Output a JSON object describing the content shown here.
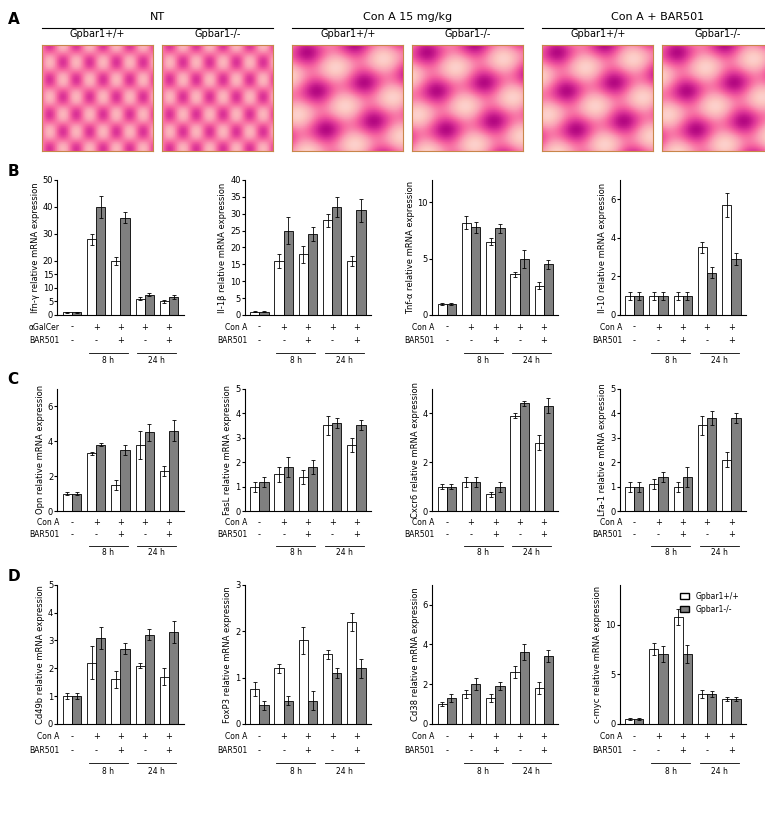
{
  "panel_labels": [
    "A",
    "B",
    "C",
    "D"
  ],
  "histology": {
    "groups": [
      {
        "title": "NT",
        "genotypes": [
          "Gpbar1+/+",
          "Gpbar1-/-"
        ]
      },
      {
        "title": "Con A 15 mg/kg",
        "genotypes": [
          "Gpbar1+/+",
          "Gpbar1-/-"
        ]
      },
      {
        "title": "Con A + BAR501",
        "genotypes": [
          "Gpbar1+/+",
          "Gpbar1-/-"
        ]
      }
    ]
  },
  "chart_data": [
    {
      "type": "bar",
      "y_label": "Ifn-γ relative mRNA expression",
      "ylim": [
        0,
        50
      ],
      "yticks": [
        0,
        5,
        10,
        15,
        20,
        30,
        40,
        50
      ],
      "condition_rows": [
        {
          "label": "αGalCer",
          "signs": [
            "-",
            "+",
            "+",
            "+",
            "+"
          ]
        },
        {
          "label": "BAR501",
          "signs": [
            "-",
            "-",
            "+",
            "-",
            "+"
          ]
        }
      ],
      "time_labels": [
        "8 h",
        "24 h"
      ],
      "series": [
        {
          "name": "Gpbar1+/+",
          "color": "#ffffff",
          "values": [
            1,
            28,
            20,
            6,
            5
          ],
          "errors": [
            0.2,
            2,
            1.5,
            0.6,
            0.5
          ]
        },
        {
          "name": "Gpbar1-/-",
          "color": "#808080",
          "values": [
            1,
            40,
            36,
            7.5,
            6.5
          ],
          "errors": [
            0.2,
            4,
            2,
            0.5,
            0.7
          ]
        }
      ]
    },
    {
      "type": "bar",
      "y_label": "Il-1β relative mRNA expression",
      "ylim": [
        0,
        40
      ],
      "yticks": [
        0,
        5,
        10,
        15,
        20,
        25,
        30,
        35,
        40
      ],
      "condition_rows": [
        {
          "label": "Con A",
          "signs": [
            "-",
            "+",
            "+",
            "+",
            "+"
          ]
        },
        {
          "label": "BAR501",
          "signs": [
            "-",
            "-",
            "+",
            "-",
            "+"
          ]
        }
      ],
      "time_labels": [
        "8 h",
        "24 h"
      ],
      "series": [
        {
          "name": "Gpbar1+/+",
          "color": "#ffffff",
          "values": [
            1,
            16,
            18,
            28,
            16
          ],
          "errors": [
            0.2,
            2,
            2.5,
            2,
            1.5
          ]
        },
        {
          "name": "Gpbar1-/-",
          "color": "#808080",
          "values": [
            1,
            25,
            24,
            32,
            31
          ],
          "errors": [
            0.2,
            4,
            2,
            3,
            3.5
          ]
        }
      ]
    },
    {
      "type": "bar",
      "y_label": "Tnf-α relative mRNA expression",
      "ylim": [
        0,
        12
      ],
      "yticks": [
        0,
        5,
        10
      ],
      "condition_rows": [
        {
          "label": "Con A",
          "signs": [
            "-",
            "+",
            "+",
            "+",
            "+"
          ]
        },
        {
          "label": "BAR501",
          "signs": [
            "-",
            "-",
            "+",
            "-",
            "+"
          ]
        }
      ],
      "time_labels": [
        "8 h",
        "24 h"
      ],
      "series": [
        {
          "name": "Gpbar1+/+",
          "color": "#ffffff",
          "values": [
            1,
            8.2,
            6.5,
            3.6,
            2.6
          ],
          "errors": [
            0.1,
            0.6,
            0.3,
            0.2,
            0.3
          ]
        },
        {
          "name": "Gpbar1-/-",
          "color": "#808080",
          "values": [
            1,
            7.8,
            7.7,
            5,
            4.5
          ],
          "errors": [
            0.1,
            0.5,
            0.4,
            0.8,
            0.4
          ]
        }
      ]
    },
    {
      "type": "bar",
      "y_label": "Il-10 relative mRNA expression",
      "ylim": [
        0,
        7
      ],
      "yticks": [
        0,
        2,
        4,
        6
      ],
      "condition_rows": [
        {
          "label": "Con A",
          "signs": [
            "-",
            "+",
            "+",
            "+",
            "+"
          ]
        },
        {
          "label": "BAR501",
          "signs": [
            "-",
            "-",
            "+",
            "-",
            "+"
          ]
        }
      ],
      "time_labels": [
        "8 h",
        "24 h"
      ],
      "series": [
        {
          "name": "Gpbar1+/+",
          "color": "#ffffff",
          "values": [
            1,
            1,
            1,
            3.5,
            5.7
          ],
          "errors": [
            0.2,
            0.2,
            0.2,
            0.3,
            0.6
          ]
        },
        {
          "name": "Gpbar1-/-",
          "color": "#808080",
          "values": [
            1,
            1,
            1,
            2.2,
            2.9
          ],
          "errors": [
            0.2,
            0.2,
            0.2,
            0.3,
            0.3
          ]
        }
      ]
    },
    {
      "type": "bar",
      "y_label": "Opn relative mRNA expression",
      "ylim": [
        0,
        7
      ],
      "yticks": [
        0,
        2,
        4,
        6
      ],
      "condition_rows": [
        {
          "label": "Con A",
          "signs": [
            "-",
            "+",
            "+",
            "+",
            "+"
          ]
        },
        {
          "label": "BAR501",
          "signs": [
            "-",
            "-",
            "+",
            "-",
            "+"
          ]
        }
      ],
      "time_labels": [
        "8 h",
        "24 h"
      ],
      "series": [
        {
          "name": "Gpbar1+/+",
          "color": "#ffffff",
          "values": [
            1,
            3.3,
            1.5,
            3.8,
            2.3
          ],
          "errors": [
            0.1,
            0.1,
            0.3,
            0.8,
            0.3
          ]
        },
        {
          "name": "Gpbar1-/-",
          "color": "#808080",
          "values": [
            1,
            3.8,
            3.5,
            4.5,
            4.6
          ],
          "errors": [
            0.1,
            0.1,
            0.3,
            0.5,
            0.6
          ]
        }
      ]
    },
    {
      "type": "bar",
      "y_label": "FasL relative mRNA expression",
      "ylim": [
        0,
        5
      ],
      "yticks": [
        0,
        1,
        2,
        3,
        4,
        5
      ],
      "condition_rows": [
        {
          "label": "Con A",
          "signs": [
            "-",
            "+",
            "+",
            "+",
            "+"
          ]
        },
        {
          "label": "BAR501",
          "signs": [
            "-",
            "-",
            "+",
            "-",
            "+"
          ]
        }
      ],
      "time_labels": [
        "8 h",
        "24 h"
      ],
      "series": [
        {
          "name": "Gpbar1+/+",
          "color": "#ffffff",
          "values": [
            1,
            1.5,
            1.4,
            3.5,
            2.7
          ],
          "errors": [
            0.2,
            0.3,
            0.3,
            0.4,
            0.3
          ]
        },
        {
          "name": "Gpbar1-/-",
          "color": "#808080",
          "values": [
            1.2,
            1.8,
            1.8,
            3.6,
            3.5
          ],
          "errors": [
            0.2,
            0.4,
            0.3,
            0.2,
            0.2
          ]
        }
      ]
    },
    {
      "type": "bar",
      "y_label": "Cxcr6 relative mRNA expression",
      "ylim": [
        0,
        5
      ],
      "yticks": [
        0,
        2,
        4
      ],
      "condition_rows": [
        {
          "label": "Con A",
          "signs": [
            "-",
            "+",
            "+",
            "+",
            "+"
          ]
        },
        {
          "label": "BAR501",
          "signs": [
            "-",
            "-",
            "+",
            "-",
            "+"
          ]
        }
      ],
      "time_labels": [
        "8 h",
        "24 h"
      ],
      "series": [
        {
          "name": "Gpbar1+/+",
          "color": "#ffffff",
          "values": [
            1,
            1.2,
            0.7,
            3.9,
            2.8
          ],
          "errors": [
            0.1,
            0.2,
            0.1,
            0.1,
            0.3
          ]
        },
        {
          "name": "Gpbar1-/-",
          "color": "#808080",
          "values": [
            1,
            1.2,
            1.0,
            4.4,
            4.3
          ],
          "errors": [
            0.1,
            0.2,
            0.2,
            0.1,
            0.3
          ]
        }
      ]
    },
    {
      "type": "bar",
      "y_label": "Lfa-1 relative mRNA expression",
      "ylim": [
        0,
        5
      ],
      "yticks": [
        0,
        1,
        2,
        3,
        4,
        5
      ],
      "condition_rows": [
        {
          "label": "Con A",
          "signs": [
            "-",
            "+",
            "+",
            "+",
            "+"
          ]
        },
        {
          "label": "BAR501",
          "signs": [
            "-",
            "-",
            "+",
            "-",
            "+"
          ]
        }
      ],
      "time_labels": [
        "8 h",
        "24 h"
      ],
      "series": [
        {
          "name": "Gpbar1+/+",
          "color": "#ffffff",
          "values": [
            1,
            1.1,
            1.0,
            3.5,
            2.1
          ],
          "errors": [
            0.2,
            0.2,
            0.2,
            0.4,
            0.3
          ]
        },
        {
          "name": "Gpbar1-/-",
          "color": "#808080",
          "values": [
            1,
            1.4,
            1.4,
            3.8,
            3.8
          ],
          "errors": [
            0.2,
            0.2,
            0.4,
            0.3,
            0.2
          ]
        }
      ]
    },
    {
      "type": "bar",
      "y_label": "Cd49b relative mRNA expression",
      "ylim": [
        0,
        5
      ],
      "yticks": [
        0,
        1,
        2,
        3,
        4,
        5
      ],
      "condition_rows": [
        {
          "label": "Con A",
          "signs": [
            "-",
            "+",
            "+",
            "+",
            "+"
          ]
        },
        {
          "label": "BAR501",
          "signs": [
            "-",
            "-",
            "+",
            "-",
            "+"
          ]
        }
      ],
      "time_labels": [
        "8 h",
        "24 h"
      ],
      "series": [
        {
          "name": "Gpbar1+/+",
          "color": "#ffffff",
          "values": [
            1,
            2.2,
            1.6,
            2.1,
            1.7
          ],
          "errors": [
            0.1,
            0.6,
            0.3,
            0.1,
            0.3
          ]
        },
        {
          "name": "Gpbar1-/-",
          "color": "#808080",
          "values": [
            1,
            3.1,
            2.7,
            3.2,
            3.3
          ],
          "errors": [
            0.1,
            0.4,
            0.2,
            0.2,
            0.4
          ]
        }
      ]
    },
    {
      "type": "bar",
      "y_label": "FoxP3 relative mRNA expression",
      "ylim": [
        0,
        3
      ],
      "yticks": [
        0,
        1,
        2,
        3
      ],
      "condition_rows": [
        {
          "label": "Con A",
          "signs": [
            "-",
            "+",
            "+",
            "+",
            "+"
          ]
        },
        {
          "label": "BAR501",
          "signs": [
            "-",
            "-",
            "+",
            "-",
            "+"
          ]
        }
      ],
      "time_labels": [
        "8 h",
        "24 h"
      ],
      "series": [
        {
          "name": "Gpbar1+/+",
          "color": "#ffffff",
          "values": [
            0.75,
            1.2,
            1.8,
            1.5,
            2.2
          ],
          "errors": [
            0.15,
            0.1,
            0.3,
            0.1,
            0.2
          ]
        },
        {
          "name": "Gpbar1-/-",
          "color": "#808080",
          "values": [
            0.4,
            0.5,
            0.5,
            1.1,
            1.2
          ],
          "errors": [
            0.1,
            0.1,
            0.2,
            0.1,
            0.2
          ]
        }
      ]
    },
    {
      "type": "bar",
      "y_label": "Cd38 relative mRNA expression",
      "ylim": [
        0,
        7
      ],
      "yticks": [
        0,
        2,
        4,
        6
      ],
      "condition_rows": [
        {
          "label": "Con A",
          "signs": [
            "-",
            "+",
            "+",
            "+",
            "+"
          ]
        },
        {
          "label": "BAR501",
          "signs": [
            "-",
            "-",
            "+",
            "-",
            "+"
          ]
        }
      ],
      "time_labels": [
        "8 h",
        "24 h"
      ],
      "series": [
        {
          "name": "Gpbar1+/+",
          "color": "#ffffff",
          "values": [
            1,
            1.5,
            1.3,
            2.6,
            1.8
          ],
          "errors": [
            0.1,
            0.2,
            0.2,
            0.3,
            0.3
          ]
        },
        {
          "name": "Gpbar1-/-",
          "color": "#808080",
          "values": [
            1.3,
            2.0,
            1.9,
            3.6,
            3.4
          ],
          "errors": [
            0.2,
            0.3,
            0.2,
            0.4,
            0.3
          ]
        }
      ]
    },
    {
      "type": "bar",
      "y_label": "c-myc relative mRNA expression",
      "ylim": [
        0,
        14
      ],
      "yticks": [
        0,
        5,
        10
      ],
      "legend": "upper right",
      "condition_rows": [
        {
          "label": "Con A",
          "signs": [
            "-",
            "+",
            "+",
            "+",
            "+"
          ]
        },
        {
          "label": "BAR501",
          "signs": [
            "-",
            "-",
            "+",
            "-",
            "+"
          ]
        }
      ],
      "time_labels": [
        "8 h",
        "24 h"
      ],
      "series": [
        {
          "name": "Gpbar1+/+",
          "color": "#ffffff",
          "values": [
            0.5,
            7.5,
            10.8,
            3,
            2.5
          ],
          "errors": [
            0.1,
            0.6,
            0.8,
            0.4,
            0.2
          ]
        },
        {
          "name": "Gpbar1-/-",
          "color": "#808080",
          "values": [
            0.5,
            7,
            7,
            3,
            2.5
          ],
          "errors": [
            0.1,
            0.8,
            0.9,
            0.3,
            0.2
          ]
        }
      ]
    }
  ]
}
